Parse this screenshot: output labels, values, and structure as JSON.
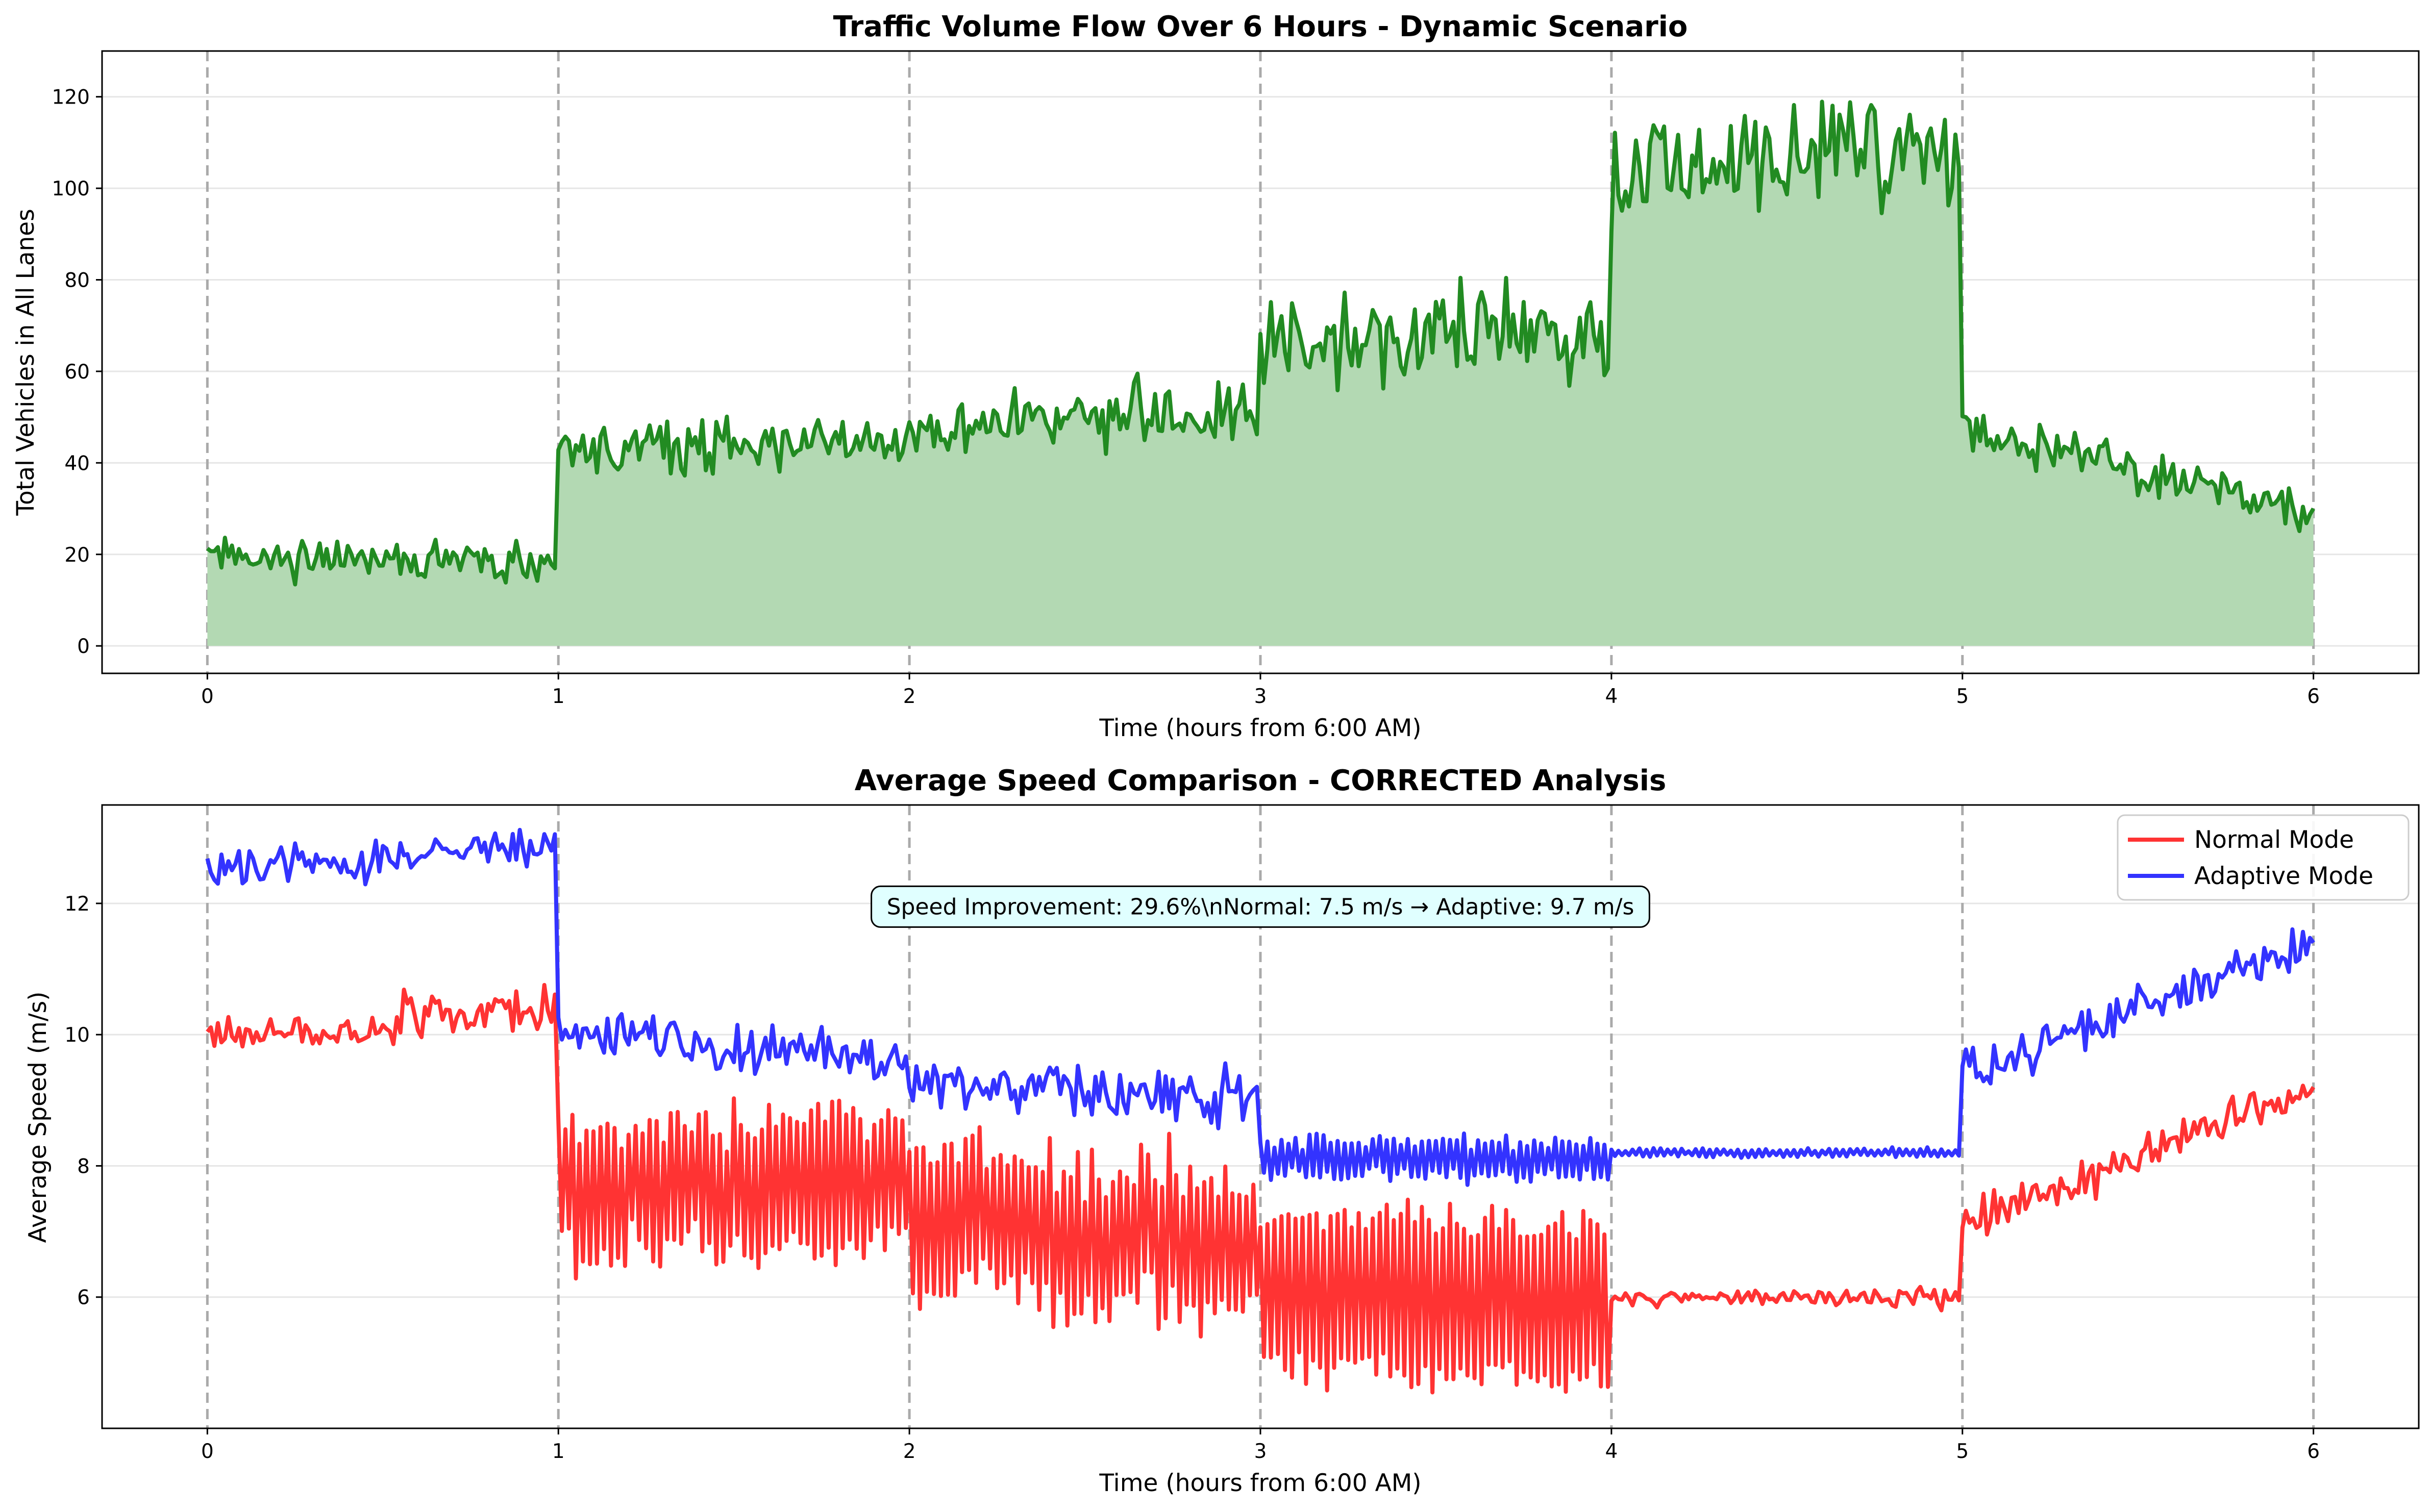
{
  "colors": {
    "volume_line": "#228b22",
    "volume_fill": "#b3d9b3",
    "normal": "#ff3333",
    "adaptive": "#3333ff",
    "hour_line": "#aaaaaa",
    "grid": "#e6e6e6",
    "annotation_bg": "#e0ffff"
  },
  "chart_data": [
    {
      "type": "area",
      "title": "Traffic Volume Flow Over 6 Hours - Dynamic Scenario",
      "xlabel": "Time (hours from 6:00 AM)",
      "ylabel": "Total Vehicles in All Lanes",
      "xlim": [
        -0.3,
        6.3
      ],
      "ylim": [
        -6,
        130
      ],
      "xticks": [
        0,
        1,
        2,
        3,
        4,
        5,
        6
      ],
      "yticks": [
        0,
        20,
        40,
        60,
        80,
        100,
        120
      ],
      "grid": "y",
      "hour_lines": [
        0,
        1,
        2,
        3,
        4,
        5,
        6
      ],
      "segments": [
        {
          "x_start": 0,
          "x_end": 1,
          "mean": 18.5,
          "trend": -2,
          "noise": 2.2
        },
        {
          "x_start": 1,
          "x_end": 2,
          "mean": 44,
          "trend": 2,
          "noise": 3.2
        },
        {
          "x_start": 2,
          "x_end": 3,
          "mean": 50,
          "trend": 2,
          "noise": 3.5
        },
        {
          "x_start": 3,
          "x_end": 4,
          "mean": 68,
          "trend": 2,
          "noise": 5.5
        },
        {
          "x_start": 4,
          "x_end": 5,
          "mean": 106,
          "trend": 5,
          "noise": 6.0
        },
        {
          "x_start": 5,
          "x_end": 6,
          "mean": 38,
          "trend": -18,
          "noise": 2.5
        }
      ],
      "series": [
        {
          "name": "",
          "values_by_hour_start": [
            19,
            48,
            50,
            55,
            108,
            50
          ]
        }
      ]
    },
    {
      "type": "line",
      "title": "Average Speed Comparison - CORRECTED Analysis",
      "xlabel": "Time (hours from 6:00 AM)",
      "ylabel": "Average Speed (m/s)",
      "xlim": [
        -0.3,
        6.3
      ],
      "ylim": [
        4.0,
        13.5
      ],
      "xticks": [
        0,
        1,
        2,
        3,
        4,
        5,
        6
      ],
      "yticks": [
        6,
        8,
        10,
        12
      ],
      "grid": "y",
      "hour_lines": [
        0,
        1,
        2,
        3,
        4,
        5,
        6
      ],
      "legend": "top-right",
      "annotation": "Speed Improvement: 29.6%\\nNormal: 7.5 m/s → Adaptive: 9.7 m/s",
      "annotation_center_x": 3.0,
      "annotation_center_y": 11.95,
      "series": [
        {
          "name": "Normal Mode",
          "segments": [
            {
              "x_start": 0,
              "x_end": 1,
              "start": 10.0,
              "end": 10.4,
              "noise": 0.3,
              "osc": 0
            },
            {
              "x_start": 1,
              "x_end": 2,
              "start": 7.6,
              "end": 7.8,
              "noise": 0.3,
              "osc": 1.0
            },
            {
              "x_start": 2,
              "x_end": 3,
              "start": 7.2,
              "end": 6.8,
              "noise": 0.4,
              "osc": 1.1
            },
            {
              "x_start": 3,
              "x_end": 4,
              "start": 6.1,
              "end": 5.9,
              "noise": 0.1,
              "osc": 1.25
            },
            {
              "x_start": 4,
              "x_end": 5,
              "start": 6.0,
              "end": 6.0,
              "noise": 0.12,
              "osc": 0
            },
            {
              "x_start": 5,
              "x_end": 6,
              "start": 7.1,
              "end": 9.2,
              "noise": 0.3,
              "osc": 0
            }
          ]
        },
        {
          "name": "Adaptive Mode",
          "segments": [
            {
              "x_start": 0,
              "x_end": 1,
              "start": 12.5,
              "end": 12.9,
              "noise": 0.25,
              "osc": 0
            },
            {
              "x_start": 1,
              "x_end": 2,
              "start": 10.0,
              "end": 9.6,
              "noise": 0.35,
              "osc": 0
            },
            {
              "x_start": 2,
              "x_end": 3,
              "start": 9.3,
              "end": 9.0,
              "noise": 0.38,
              "osc": 0
            },
            {
              "x_start": 3,
              "x_end": 4,
              "start": 8.1,
              "end": 8.1,
              "noise": 0.1,
              "osc": 0.28
            },
            {
              "x_start": 4,
              "x_end": 5,
              "start": 8.2,
              "end": 8.2,
              "noise": 0.02,
              "osc": 0.05
            },
            {
              "x_start": 5,
              "x_end": 6,
              "start": 9.4,
              "end": 11.4,
              "noise": 0.28,
              "osc": 0
            }
          ]
        }
      ]
    }
  ]
}
